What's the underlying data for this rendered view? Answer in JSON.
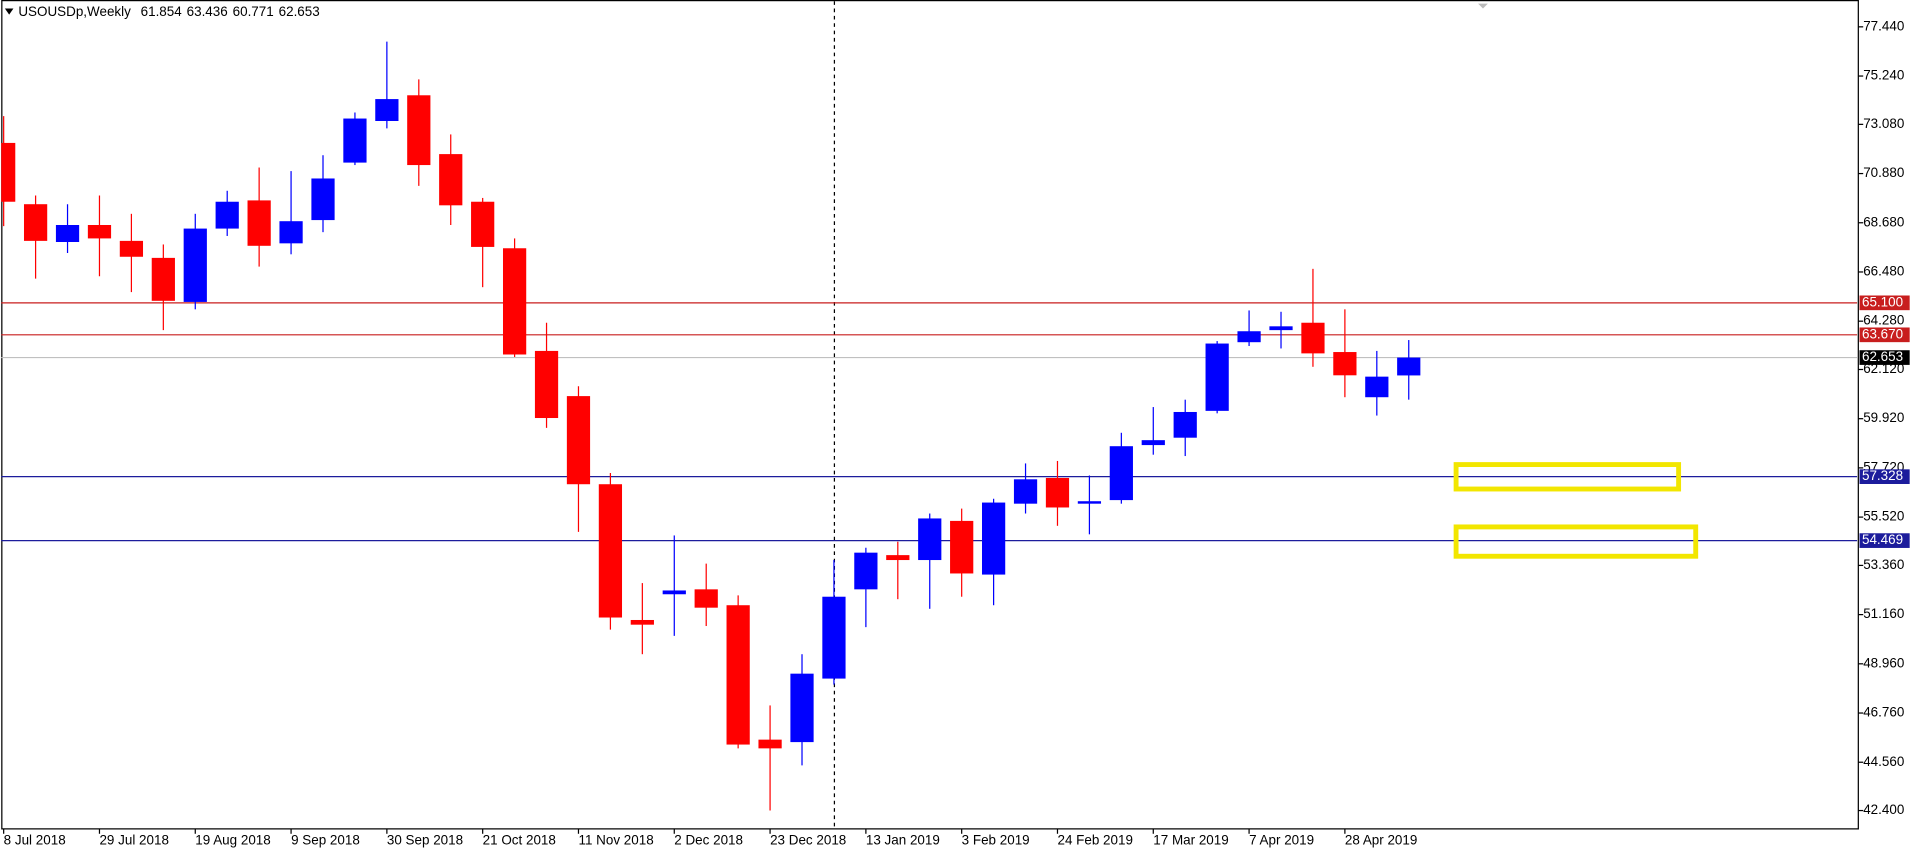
{
  "chart_data": {
    "type": "candlestick",
    "title": "USOUSDp,Weekly",
    "categories": [
      "8 Jul 2018",
      null,
      null,
      "29 Jul 2018",
      null,
      null,
      "19 Aug 2018",
      null,
      null,
      "9 Sep 2018",
      null,
      null,
      "30 Sep 2018",
      null,
      null,
      "21 Oct 2018",
      null,
      null,
      "11 Nov 2018",
      null,
      null,
      "2 Dec 2018",
      null,
      null,
      "23 Dec 2018",
      null,
      null,
      "13 Jan 2019",
      null,
      null,
      "3 Feb 2019",
      null,
      null,
      "24 Feb 2019",
      null,
      null,
      "17 Mar 2019",
      null,
      null,
      "7 Apr 2019",
      null,
      null,
      "28 Apr 2019",
      null,
      null
    ],
    "open": [
      72.25,
      69.51,
      67.82,
      68.58,
      67.87,
      67.11,
      65.14,
      68.42,
      69.68,
      67.76,
      68.8,
      71.37,
      73.23,
      74.38,
      71.75,
      69.62,
      67.54,
      62.95,
      60.93,
      56.99,
      50.92,
      52.07,
      52.29,
      51.58,
      45.57,
      45.46,
      48.3,
      52.29,
      53.82,
      53.6,
      55.35,
      52.95,
      56.12,
      57.27,
      56.12,
      56.28,
      58.74,
      59.07,
      60.27,
      63.34,
      63.88,
      64.21,
      62.9,
      60.88,
      61.854
    ],
    "high": [
      73.45,
      69.9,
      69.51,
      69.9,
      69.08,
      67.71,
      69.08,
      70.11,
      71.15,
      70.99,
      71.7,
      73.61,
      76.78,
      75.09,
      72.63,
      69.79,
      67.98,
      64.21,
      61.37,
      57.49,
      52.57,
      54.7,
      53.44,
      52.02,
      47.1,
      49.39,
      53.6,
      54.15,
      54.42,
      55.68,
      55.9,
      56.34,
      57.92,
      58.03,
      57.38,
      59.29,
      60.44,
      60.77,
      63.39,
      64.76,
      64.7,
      66.62,
      64.81,
      62.95,
      63.436
    ],
    "low": [
      68.53,
      66.18,
      67.33,
      66.29,
      65.58,
      63.88,
      64.81,
      68.09,
      66.72,
      67.27,
      68.26,
      71.26,
      72.9,
      70.33,
      68.58,
      65.8,
      62.68,
      59.51,
      54.86,
      50.49,
      49.39,
      50.21,
      50.65,
      45.18,
      42.4,
      44.42,
      48.03,
      50.6,
      51.85,
      51.42,
      51.96,
      51.58,
      55.68,
      55.13,
      54.75,
      56.12,
      58.31,
      58.25,
      60.16,
      63.17,
      63.06,
      62.24,
      60.88,
      60.06,
      60.771
    ],
    "close": [
      69.62,
      67.87,
      68.58,
      67.98,
      67.16,
      65.19,
      68.42,
      69.62,
      67.65,
      68.75,
      70.66,
      73.34,
      74.21,
      71.26,
      69.46,
      67.6,
      62.79,
      59.95,
      56.99,
      51.03,
      50.71,
      52.24,
      51.47,
      45.35,
      45.18,
      48.52,
      51.96,
      53.93,
      53.6,
      55.46,
      53.0,
      56.17,
      57.21,
      55.95,
      56.23,
      58.69,
      58.96,
      60.22,
      63.28,
      63.83,
      64.05,
      62.84,
      61.86,
      61.8,
      62.653
    ],
    "up_color": "#0000ff",
    "down_color": "#ff0000",
    "ylim": [
      41.58,
      78.64
    ],
    "yticks": [
      {
        "value": 77.44,
        "label": "77.440"
      },
      {
        "value": 75.24,
        "label": "75.240"
      },
      {
        "value": 73.08,
        "label": "73.080"
      },
      {
        "value": 70.88,
        "label": "70.880"
      },
      {
        "value": 68.68,
        "label": "68.680"
      },
      {
        "value": 66.48,
        "label": "66.480"
      },
      {
        "value": 64.28,
        "label": "64.280"
      },
      {
        "value": 62.12,
        "label": "62.120"
      },
      {
        "value": 59.92,
        "label": "59.920"
      },
      {
        "value": 57.72,
        "label": "57.720"
      },
      {
        "value": 55.52,
        "label": "55.520"
      },
      {
        "value": 53.36,
        "label": "53.360"
      },
      {
        "value": 51.16,
        "label": "51.160"
      },
      {
        "value": 48.96,
        "label": "48.960"
      },
      {
        "value": 46.76,
        "label": "46.760"
      },
      {
        "value": 44.56,
        "label": "44.560"
      },
      {
        "value": 42.4,
        "label": "42.400"
      }
    ],
    "levels": [
      {
        "value": 65.1,
        "label": "65.100",
        "color": "#c81e1e"
      },
      {
        "value": 63.67,
        "label": "63.670",
        "color": "#c81e1e"
      },
      {
        "value": 57.328,
        "label": "57.328",
        "color": "#1c1c9c"
      },
      {
        "value": 54.469,
        "label": "54.469",
        "color": "#1c1c9c"
      }
    ]
  }
}
